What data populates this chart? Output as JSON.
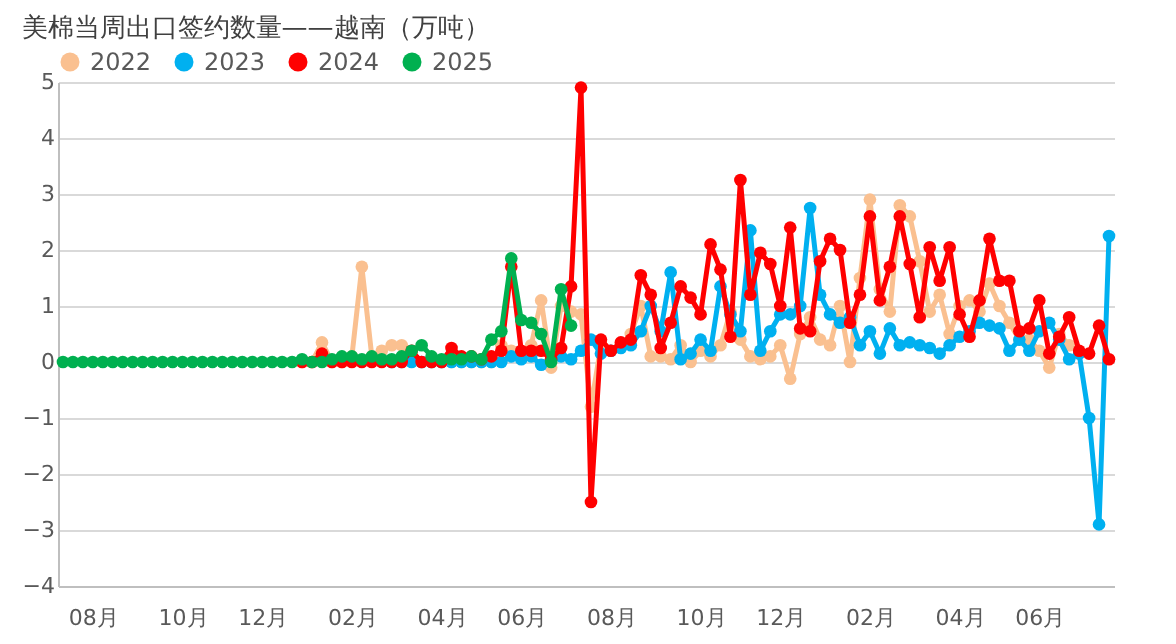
{
  "chart_data": {
    "type": "line",
    "title": "美棉当周出口签约数量——越南（万吨）",
    "categories": [
      null,
      null,
      null,
      "08月",
      null,
      null,
      null,
      null,
      null,
      null,
      null,
      null,
      "10月",
      null,
      null,
      null,
      null,
      null,
      null,
      null,
      "12月",
      null,
      null,
      null,
      null,
      null,
      null,
      null,
      null,
      "02月",
      null,
      null,
      null,
      null,
      null,
      null,
      null,
      null,
      "04月",
      null,
      null,
      null,
      null,
      null,
      null,
      null,
      "06月",
      null,
      null,
      null,
      null,
      null,
      null,
      null,
      null,
      "08月",
      null,
      null,
      null,
      null,
      null,
      null,
      null,
      null,
      "10月",
      null,
      null,
      null,
      null,
      null,
      null,
      null,
      "12月",
      null,
      null,
      null,
      null,
      null,
      null,
      null,
      null,
      "02月",
      null,
      null,
      null,
      null,
      null,
      null,
      null,
      null,
      "04月",
      null,
      null,
      null,
      null,
      null,
      null,
      null,
      "06月",
      null,
      null,
      null,
      null,
      null,
      null,
      null
    ],
    "series": [
      {
        "name": "2022",
        "color": "#fac090",
        "values": [
          null,
          null,
          null,
          null,
          null,
          null,
          null,
          null,
          null,
          null,
          null,
          null,
          null,
          null,
          null,
          null,
          null,
          null,
          null,
          null,
          null,
          null,
          null,
          null,
          0,
          0,
          0.35,
          0,
          0,
          0.1,
          1.7,
          0.1,
          0.2,
          0.3,
          0.3,
          0.1,
          0,
          0,
          0,
          0,
          0,
          0,
          0,
          0,
          0.3,
          0.2,
          0.1,
          0.3,
          1.1,
          -0.1,
          1.0,
          0.9,
          0.85,
          -0.8,
          0.3,
          0.2,
          0.3,
          0.5,
          1.0,
          0.1,
          0.1,
          0.05,
          0.3,
          0.0,
          0.2,
          0.1,
          0.3,
          0.9,
          0.4,
          0.1,
          0.05,
          0.1,
          0.3,
          -0.3,
          0.5,
          0.8,
          0.4,
          0.3,
          1.0,
          0.0,
          1.5,
          2.9,
          1.3,
          0.9,
          2.8,
          2.6,
          1.8,
          0.9,
          1.2,
          0.5,
          1.0,
          1.1,
          0.9,
          1.4,
          1.0,
          0.7,
          0.4,
          0.4,
          0.2,
          -0.1,
          0.5,
          0.3,
          null,
          null,
          null,
          null
        ]
      },
      {
        "name": "2023",
        "color": "#00b0f0",
        "values": [
          null,
          null,
          null,
          null,
          null,
          null,
          null,
          null,
          null,
          null,
          null,
          null,
          null,
          null,
          null,
          null,
          null,
          null,
          null,
          null,
          null,
          null,
          null,
          null,
          null,
          null,
          null,
          null,
          null,
          null,
          null,
          null,
          null,
          0,
          0,
          0,
          0,
          0,
          0,
          0,
          0,
          0,
          0,
          0,
          0,
          0.1,
          0.05,
          0.1,
          -0.05,
          0.05,
          0.1,
          0.05,
          0.2,
          0.4,
          0.15,
          0.2,
          0.25,
          0.3,
          0.55,
          1.0,
          0.55,
          1.6,
          0.05,
          0.15,
          0.4,
          0.2,
          1.35,
          0.85,
          0.55,
          2.35,
          0.2,
          0.55,
          0.85,
          0.85,
          1.0,
          2.75,
          1.2,
          0.85,
          0.7,
          0.8,
          0.3,
          0.55,
          0.15,
          0.6,
          0.3,
          0.35,
          0.3,
          0.25,
          0.15,
          0.3,
          0.45,
          0.55,
          0.7,
          0.65,
          0.6,
          0.2,
          0.4,
          0.2,
          0.55,
          0.7,
          0.4,
          0.05,
          0.15,
          -1.0,
          -2.9,
          2.25
        ]
      },
      {
        "name": "2024",
        "color": "#ff0000",
        "values": [
          null,
          null,
          null,
          null,
          null,
          null,
          null,
          null,
          null,
          null,
          null,
          null,
          null,
          null,
          null,
          null,
          null,
          null,
          null,
          null,
          null,
          null,
          null,
          null,
          0,
          0,
          0.15,
          0,
          0,
          0,
          0,
          0,
          0,
          0,
          0,
          0.2,
          0,
          0,
          0,
          0.25,
          0.1,
          0.1,
          0.05,
          0.1,
          0.2,
          1.7,
          0.2,
          0.2,
          0.2,
          0.05,
          0.25,
          1.35,
          4.9,
          -2.5,
          0.4,
          0.2,
          0.35,
          0.4,
          1.55,
          1.2,
          0.25,
          0.7,
          1.35,
          1.15,
          0.85,
          2.1,
          1.65,
          0.45,
          3.25,
          1.2,
          1.95,
          1.75,
          1.0,
          2.4,
          0.6,
          0.55,
          1.8,
          2.2,
          2.0,
          0.7,
          1.2,
          2.6,
          1.1,
          1.7,
          2.6,
          1.75,
          0.8,
          2.05,
          1.45,
          2.05,
          0.85,
          0.45,
          1.1,
          2.2,
          1.45,
          1.45,
          0.55,
          0.6,
          1.1,
          0.15,
          0.45,
          0.8,
          0.2,
          0.15,
          0.65,
          0.05
        ]
      },
      {
        "name": "2025",
        "color": "#00b050",
        "values": [
          0,
          0,
          0,
          0,
          0,
          0,
          0,
          0,
          0,
          0,
          0,
          0,
          0,
          0,
          0,
          0,
          0,
          0,
          0,
          0,
          0,
          0,
          0,
          0,
          0.05,
          0,
          0,
          0.05,
          0.1,
          0.1,
          0.05,
          0.1,
          0.05,
          0.05,
          0.1,
          0.2,
          0.3,
          0.1,
          0.05,
          0.05,
          0.05,
          0.1,
          0.05,
          0.4,
          0.55,
          1.85,
          0.75,
          0.7,
          0.5,
          0,
          1.3,
          0.65,
          null,
          null,
          null,
          null,
          null,
          null,
          null,
          null,
          null,
          null,
          null,
          null,
          null,
          null,
          null,
          null,
          null,
          null,
          null,
          null,
          null,
          null,
          null,
          null,
          null,
          null,
          null,
          null,
          null,
          null,
          null,
          null,
          null,
          null,
          null,
          null,
          null,
          null,
          null,
          null,
          null,
          null,
          null,
          null,
          null,
          null,
          null,
          null,
          null,
          null,
          null,
          null,
          null,
          null
        ]
      }
    ],
    "ylim": [
      -4,
      5
    ],
    "yticks": [
      -4,
      -3,
      -2,
      -1,
      0,
      1,
      2,
      3,
      4,
      5
    ],
    "grid": "y",
    "legend": "top",
    "marker": "circle",
    "line_style": "solid"
  }
}
